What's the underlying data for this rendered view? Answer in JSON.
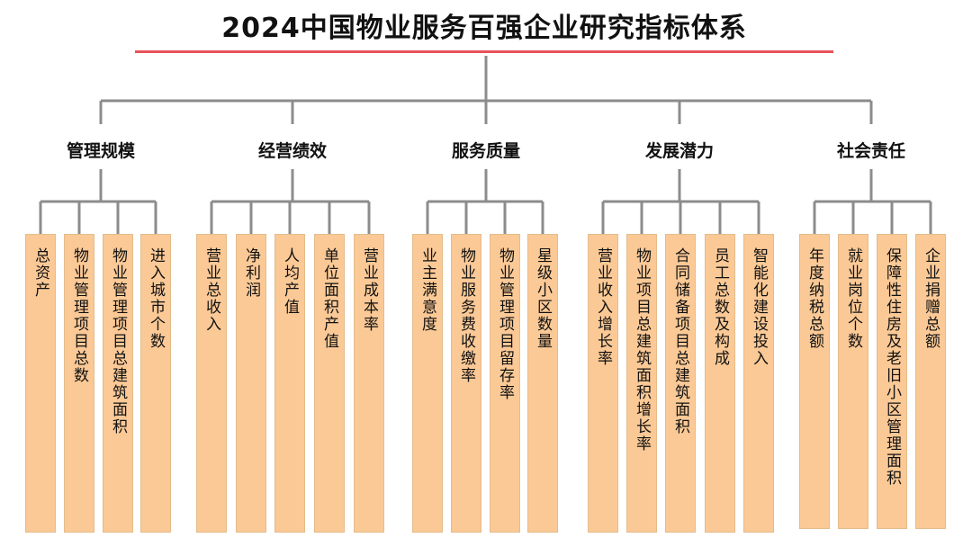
{
  "title": "2024中国物业服务百强企业研究指标体系",
  "colors": {
    "title_underline": "#e8525a",
    "connector": "#8c8c8c",
    "leaf_fill": "#fbc996",
    "text": "#111111"
  },
  "categories": [
    {
      "label": "管理规模",
      "items": [
        "总资产",
        "物业管理项目总数",
        "物业管理项目总建筑面积",
        "进入城市个数"
      ]
    },
    {
      "label": "经营绩效",
      "items": [
        "营业总收入",
        "净利润",
        "人均产值",
        "单位面积产值",
        "营业成本率"
      ]
    },
    {
      "label": "服务质量",
      "items": [
        "业主满意度",
        "物业服务费收缴率",
        "物业管理项目留存率",
        "星级小区数量"
      ]
    },
    {
      "label": "发展潜力",
      "items": [
        "营业收入增长率",
        "物业项目总建筑面积增长率",
        "合同储备项目总建筑面积",
        "员工总数及构成",
        "智能化建设投入"
      ]
    },
    {
      "label": "社会责任",
      "items": [
        "年度纳税总额",
        "就业岗位个数",
        "保障性住房及老旧小区管理面积",
        "企业捐赠总额"
      ]
    }
  ]
}
